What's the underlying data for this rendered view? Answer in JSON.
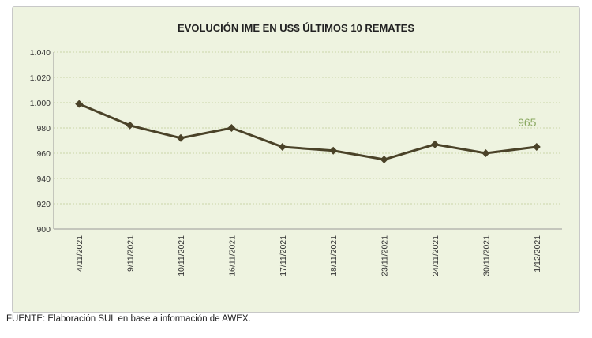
{
  "chart_data": {
    "type": "line",
    "title": "EVOLUCIÓN IME EN US$ ÚLTIMOS 10 REMATES",
    "categories": [
      "4/11/2021",
      "9/11/2021",
      "10/11/2021",
      "16/11/2021",
      "17/11/2021",
      "18/11/2021",
      "23/11/2021",
      "24/11/2021",
      "30/11/2021",
      "1/12/2021"
    ],
    "values": [
      999,
      982,
      972,
      980,
      965,
      962,
      955,
      967,
      960,
      965
    ],
    "ylim": [
      900,
      1040
    ],
    "yticks": [
      900,
      920,
      940,
      960,
      980,
      1000,
      1020,
      1040
    ],
    "ytick_labels": [
      "900",
      "920",
      "940",
      "960",
      "980",
      "1.000",
      "1.020",
      "1.040"
    ],
    "grid": true,
    "annotation": "965",
    "colors": {
      "line": "#4a4228",
      "annotation": "#8aa860",
      "grid": "#c9d6a8",
      "background": "#eef3e0"
    }
  },
  "source": "FUENTE: Elaboración SUL en base a información de AWEX."
}
